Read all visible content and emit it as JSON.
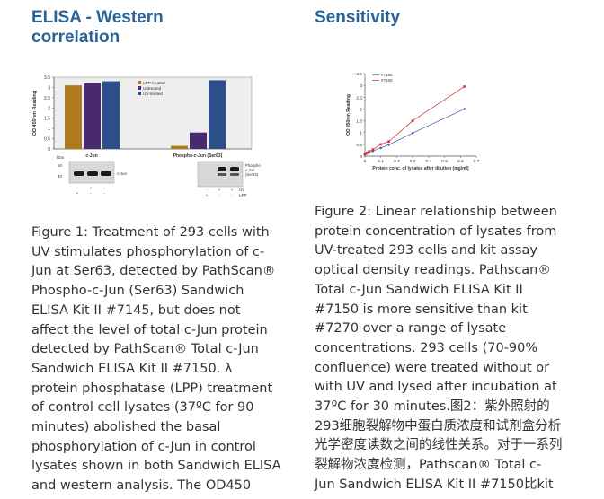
{
  "left": {
    "heading_lines": [
      "ELISA - Western",
      "correlation"
    ],
    "caption_lines": [
      "Figure 1: Treatment of 293 cells with",
      "UV stimulates phosphorylation of c-",
      "Jun at Ser63, detected by PathScan®",
      "Phospho-c-Jun (Ser63) Sandwich",
      "ELISA Kit II #7145, but does not",
      "affect the level of total c-Jun protein",
      "detected by PathScan® Total c-Jun",
      "Sandwich ELISA Kit II #7150. λ",
      "protein phosphatase (LPP) treatment",
      "of control cell lysates (37ºC for 90",
      "minutes) abolished the basal",
      "phosphorylation of c-Jun in control",
      "lysates shown in both Sandwich ELISA",
      "and western analysis. The OD450"
    ]
  },
  "right": {
    "heading_lines": [
      "Sensitivity"
    ],
    "caption_lines": [
      "Figure 2: Linear relationship between",
      "protein concentration of lysates from",
      "UV-treated 293 cells and kit assay",
      "optical density readings. Pathscan®",
      "Total c-Jun Sandwich ELISA Kit II",
      "#7150 is more sensitive than kit",
      "#7270 over a range of lysate",
      "concentrations. 293 cells (70-90%",
      "confluence) were treated without or",
      "with UV and lysed after incubation at",
      "37ºC for 30 minutes.图2：紫外照射的",
      "293细胞裂解物中蛋白质浓度和试剂盒分析",
      "光学密度读数之间的线性关系。对于一系列",
      "裂解物浓度检测，Pathscan® Total c-",
      "Jun Sandwich ELISA Kit II #7150比kit"
    ]
  },
  "chart_data": [
    {
      "type": "bar",
      "ylabel": "OD 450nm Reading",
      "ylim": [
        0,
        3.5
      ],
      "yticks": [
        "0",
        "0.5",
        "1",
        "1.5",
        "2",
        "2.5",
        "3",
        "3.5"
      ],
      "categories": [
        "c-Jun",
        "Phospho-c-Jun (Ser63)"
      ],
      "series": [
        {
          "name": "LPP-treated",
          "color": "#b07a1e",
          "values": [
            3.1,
            0.15
          ]
        },
        {
          "name": "Untreated",
          "color": "#4a2a6e",
          "values": [
            3.2,
            0.8
          ]
        },
        {
          "name": "UV-treated",
          "color": "#2c4f8a",
          "values": [
            3.3,
            3.35
          ]
        }
      ],
      "legend": "top-center",
      "grid": false,
      "blot": {
        "kda_label": "kDa",
        "markers": [
          "50",
          "40"
        ],
        "left_label": "c-Jun",
        "right_label_lines": [
          "Phospho-",
          "c-Jun",
          "(Ser63)"
        ],
        "row_labels": [
          "UV",
          "LPP"
        ],
        "left_marks": [
          [
            "-",
            "+",
            "-"
          ],
          [
            "+",
            "-",
            "-"
          ]
        ],
        "right_marks": [
          [
            "-",
            "+",
            "+"
          ],
          [
            "+",
            "-",
            "-"
          ]
        ]
      }
    },
    {
      "type": "line",
      "xlabel": "Protein conc. of lysates after dilution (mg/ml)",
      "ylabel": "OD 450nm Reading",
      "xlim": [
        0,
        0.7
      ],
      "ylim": [
        0,
        3.5
      ],
      "xticks": [
        "0",
        "0.1",
        "0.2",
        "0.3",
        "0.4",
        "0.5",
        "0.6",
        "0.7"
      ],
      "yticks": [
        "0",
        "0.5",
        "1",
        "1.5",
        "2",
        "2.5",
        "3",
        "3.5"
      ],
      "legend": "top-left",
      "grid": false,
      "series": [
        {
          "name": "#7150",
          "color": "#3a56b0",
          "marker": "diamond",
          "x": [
            0,
            0.0125,
            0.025,
            0.05,
            0.1,
            0.15,
            0.3,
            0.625
          ],
          "y": [
            0.08,
            0.12,
            0.15,
            0.22,
            0.35,
            0.48,
            0.98,
            2.0
          ]
        },
        {
          "name": "#7160",
          "color": "#d42a2a",
          "marker": "square",
          "x": [
            0,
            0.0125,
            0.025,
            0.05,
            0.1,
            0.15,
            0.3,
            0.625
          ],
          "y": [
            0.08,
            0.14,
            0.2,
            0.28,
            0.5,
            0.62,
            1.5,
            2.95
          ]
        }
      ]
    }
  ]
}
